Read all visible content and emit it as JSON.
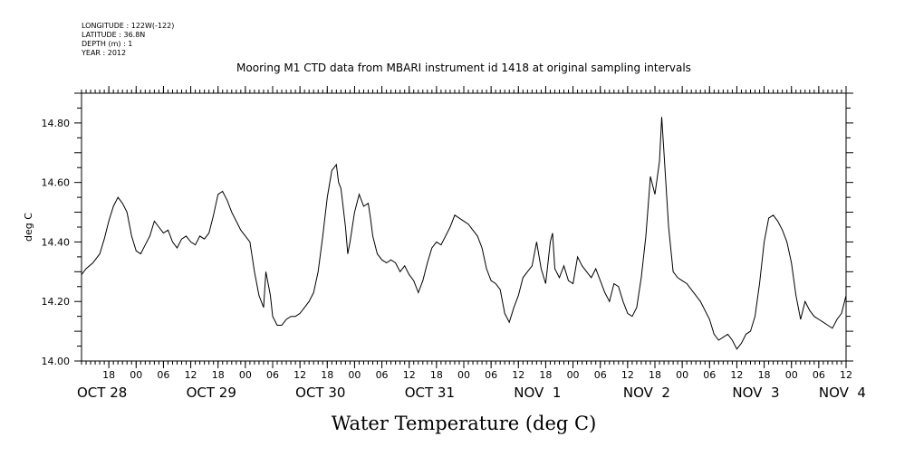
{
  "meta_lines": [
    "LONGITUDE : 122W(-122)",
    "LATITUDE : 36.8N",
    "DEPTH (m) : 1",
    "YEAR : 2012"
  ],
  "chart_data": {
    "type": "line",
    "title": "Mooring M1 CTD data from MBARI instrument id 1418 at original sampling intervals",
    "xlabel": "Water Temperature (deg C)",
    "ylabel": "deg C",
    "x_unit": "hours since OCT 28 00:00",
    "xlim": [
      12,
      180
    ],
    "ylim": [
      14.0,
      14.9
    ],
    "yticks": [
      "14.00",
      "14.20",
      "14.40",
      "14.60",
      "14.80"
    ],
    "hour_ticks": [
      {
        "h": 18,
        "label": "18"
      },
      {
        "h": 24,
        "label": "00"
      },
      {
        "h": 30,
        "label": "06"
      },
      {
        "h": 36,
        "label": "12"
      },
      {
        "h": 42,
        "label": "18"
      },
      {
        "h": 48,
        "label": "00"
      },
      {
        "h": 54,
        "label": "06"
      },
      {
        "h": 60,
        "label": "12"
      },
      {
        "h": 66,
        "label": "18"
      },
      {
        "h": 72,
        "label": "00"
      },
      {
        "h": 78,
        "label": "06"
      },
      {
        "h": 84,
        "label": "12"
      },
      {
        "h": 90,
        "label": "18"
      },
      {
        "h": 96,
        "label": "00"
      },
      {
        "h": 102,
        "label": "06"
      },
      {
        "h": 108,
        "label": "12"
      },
      {
        "h": 114,
        "label": "18"
      },
      {
        "h": 120,
        "label": "00"
      },
      {
        "h": 126,
        "label": "06"
      },
      {
        "h": 132,
        "label": "12"
      },
      {
        "h": 138,
        "label": "18"
      },
      {
        "h": 144,
        "label": "00"
      },
      {
        "h": 150,
        "label": "06"
      },
      {
        "h": 156,
        "label": "12"
      },
      {
        "h": 162,
        "label": "18"
      },
      {
        "h": 168,
        "label": "00"
      },
      {
        "h": 174,
        "label": "06"
      },
      {
        "h": 180,
        "label": "12"
      }
    ],
    "day_labels": [
      {
        "h": 12,
        "label": "OCT 28"
      },
      {
        "h": 36,
        "label": "OCT 29"
      },
      {
        "h": 60,
        "label": "OCT 30"
      },
      {
        "h": 84,
        "label": "OCT 31"
      },
      {
        "h": 108,
        "label": "NOV  1"
      },
      {
        "h": 132,
        "label": "NOV  2"
      },
      {
        "h": 156,
        "label": "NOV  3"
      },
      {
        "h": 175,
        "label": "NOV  4"
      }
    ],
    "grid": false,
    "series": [
      {
        "color": "#000000",
        "points": [
          [
            12.0,
            14.29
          ],
          [
            13.0,
            14.31
          ],
          [
            14.5,
            14.33
          ],
          [
            16.0,
            14.36
          ],
          [
            17.0,
            14.41
          ],
          [
            18.0,
            14.47
          ],
          [
            19.0,
            14.52
          ],
          [
            20.0,
            14.55
          ],
          [
            21.0,
            14.53
          ],
          [
            22.0,
            14.5
          ],
          [
            23.0,
            14.42
          ],
          [
            24.0,
            14.37
          ],
          [
            25.0,
            14.36
          ],
          [
            26.0,
            14.39
          ],
          [
            27.0,
            14.42
          ],
          [
            28.0,
            14.47
          ],
          [
            29.0,
            14.45
          ],
          [
            30.0,
            14.43
          ],
          [
            31.0,
            14.44
          ],
          [
            32.0,
            14.4
          ],
          [
            33.0,
            14.38
          ],
          [
            34.0,
            14.41
          ],
          [
            35.0,
            14.42
          ],
          [
            36.0,
            14.4
          ],
          [
            37.0,
            14.39
          ],
          [
            38.0,
            14.42
          ],
          [
            39.0,
            14.41
          ],
          [
            40.0,
            14.43
          ],
          [
            41.0,
            14.49
          ],
          [
            42.0,
            14.56
          ],
          [
            43.0,
            14.57
          ],
          [
            44.0,
            14.54
          ],
          [
            45.0,
            14.5
          ],
          [
            46.0,
            14.47
          ],
          [
            47.0,
            14.44
          ],
          [
            48.0,
            14.42
          ],
          [
            49.0,
            14.4
          ],
          [
            50.0,
            14.3
          ],
          [
            51.0,
            14.22
          ],
          [
            52.0,
            14.18
          ],
          [
            52.5,
            14.3
          ],
          [
            53.5,
            14.22
          ],
          [
            54.0,
            14.15
          ],
          [
            55.0,
            14.12
          ],
          [
            56.0,
            14.12
          ],
          [
            57.0,
            14.14
          ],
          [
            58.0,
            14.15
          ],
          [
            59.0,
            14.15
          ],
          [
            60.0,
            14.16
          ],
          [
            61.0,
            14.18
          ],
          [
            62.0,
            14.2
          ],
          [
            63.0,
            14.23
          ],
          [
            64.0,
            14.3
          ],
          [
            65.0,
            14.42
          ],
          [
            66.0,
            14.55
          ],
          [
            67.0,
            14.64
          ],
          [
            68.0,
            14.66
          ],
          [
            68.5,
            14.6
          ],
          [
            69.0,
            14.58
          ],
          [
            70.0,
            14.45
          ],
          [
            70.5,
            14.36
          ],
          [
            71.0,
            14.4
          ],
          [
            72.0,
            14.5
          ],
          [
            73.0,
            14.56
          ],
          [
            74.0,
            14.52
          ],
          [
            75.0,
            14.53
          ],
          [
            75.5,
            14.48
          ],
          [
            76.0,
            14.42
          ],
          [
            77.0,
            14.36
          ],
          [
            78.0,
            14.34
          ],
          [
            79.0,
            14.33
          ],
          [
            80.0,
            14.34
          ],
          [
            81.0,
            14.33
          ],
          [
            82.0,
            14.3
          ],
          [
            83.0,
            14.32
          ],
          [
            84.0,
            14.29
          ],
          [
            85.0,
            14.27
          ],
          [
            86.0,
            14.23
          ],
          [
            87.0,
            14.27
          ],
          [
            88.0,
            14.33
          ],
          [
            89.0,
            14.38
          ],
          [
            90.0,
            14.4
          ],
          [
            91.0,
            14.39
          ],
          [
            92.0,
            14.42
          ],
          [
            93.0,
            14.45
          ],
          [
            94.0,
            14.49
          ],
          [
            95.0,
            14.48
          ],
          [
            96.0,
            14.47
          ],
          [
            97.0,
            14.46
          ],
          [
            98.0,
            14.44
          ],
          [
            99.0,
            14.42
          ],
          [
            100.0,
            14.38
          ],
          [
            101.0,
            14.31
          ],
          [
            102.0,
            14.27
          ],
          [
            103.0,
            14.26
          ],
          [
            104.0,
            14.24
          ],
          [
            105.0,
            14.16
          ],
          [
            106.0,
            14.13
          ],
          [
            107.0,
            14.18
          ],
          [
            108.0,
            14.22
          ],
          [
            109.0,
            14.28
          ],
          [
            110.0,
            14.3
          ],
          [
            111.0,
            14.32
          ],
          [
            112.0,
            14.4
          ],
          [
            113.0,
            14.31
          ],
          [
            114.0,
            14.26
          ],
          [
            115.0,
            14.4
          ],
          [
            115.5,
            14.43
          ],
          [
            116.0,
            14.31
          ],
          [
            117.0,
            14.28
          ],
          [
            118.0,
            14.32
          ],
          [
            119.0,
            14.27
          ],
          [
            120.0,
            14.26
          ],
          [
            121.0,
            14.35
          ],
          [
            122.0,
            14.32
          ],
          [
            123.0,
            14.3
          ],
          [
            124.0,
            14.28
          ],
          [
            125.0,
            14.31
          ],
          [
            126.0,
            14.27
          ],
          [
            127.0,
            14.23
          ],
          [
            128.0,
            14.2
          ],
          [
            129.0,
            14.26
          ],
          [
            130.0,
            14.25
          ],
          [
            131.0,
            14.2
          ],
          [
            132.0,
            14.16
          ],
          [
            133.0,
            14.15
          ],
          [
            134.0,
            14.18
          ],
          [
            135.0,
            14.28
          ],
          [
            136.0,
            14.42
          ],
          [
            137.0,
            14.62
          ],
          [
            138.0,
            14.56
          ],
          [
            139.0,
            14.67
          ],
          [
            139.5,
            14.82
          ],
          [
            140.0,
            14.7
          ],
          [
            141.0,
            14.45
          ],
          [
            142.0,
            14.3
          ],
          [
            143.0,
            14.28
          ],
          [
            144.0,
            14.27
          ],
          [
            145.0,
            14.26
          ],
          [
            146.0,
            14.24
          ],
          [
            147.0,
            14.22
          ],
          [
            148.0,
            14.2
          ],
          [
            149.0,
            14.17
          ],
          [
            150.0,
            14.14
          ],
          [
            151.0,
            14.09
          ],
          [
            152.0,
            14.07
          ],
          [
            153.0,
            14.08
          ],
          [
            154.0,
            14.09
          ],
          [
            155.0,
            14.07
          ],
          [
            156.0,
            14.04
          ],
          [
            157.0,
            14.06
          ],
          [
            158.0,
            14.09
          ],
          [
            159.0,
            14.1
          ],
          [
            160.0,
            14.15
          ],
          [
            161.0,
            14.26
          ],
          [
            162.0,
            14.4
          ],
          [
            163.0,
            14.48
          ],
          [
            164.0,
            14.49
          ],
          [
            165.0,
            14.47
          ],
          [
            166.0,
            14.44
          ],
          [
            167.0,
            14.4
          ],
          [
            168.0,
            14.33
          ],
          [
            169.0,
            14.22
          ],
          [
            170.0,
            14.14
          ],
          [
            171.0,
            14.2
          ],
          [
            172.0,
            14.17
          ],
          [
            173.0,
            14.15
          ],
          [
            174.0,
            14.14
          ],
          [
            175.0,
            14.13
          ],
          [
            176.0,
            14.12
          ],
          [
            177.0,
            14.11
          ],
          [
            178.0,
            14.14
          ],
          [
            179.0,
            14.16
          ],
          [
            180.0,
            14.22
          ]
        ]
      }
    ]
  }
}
